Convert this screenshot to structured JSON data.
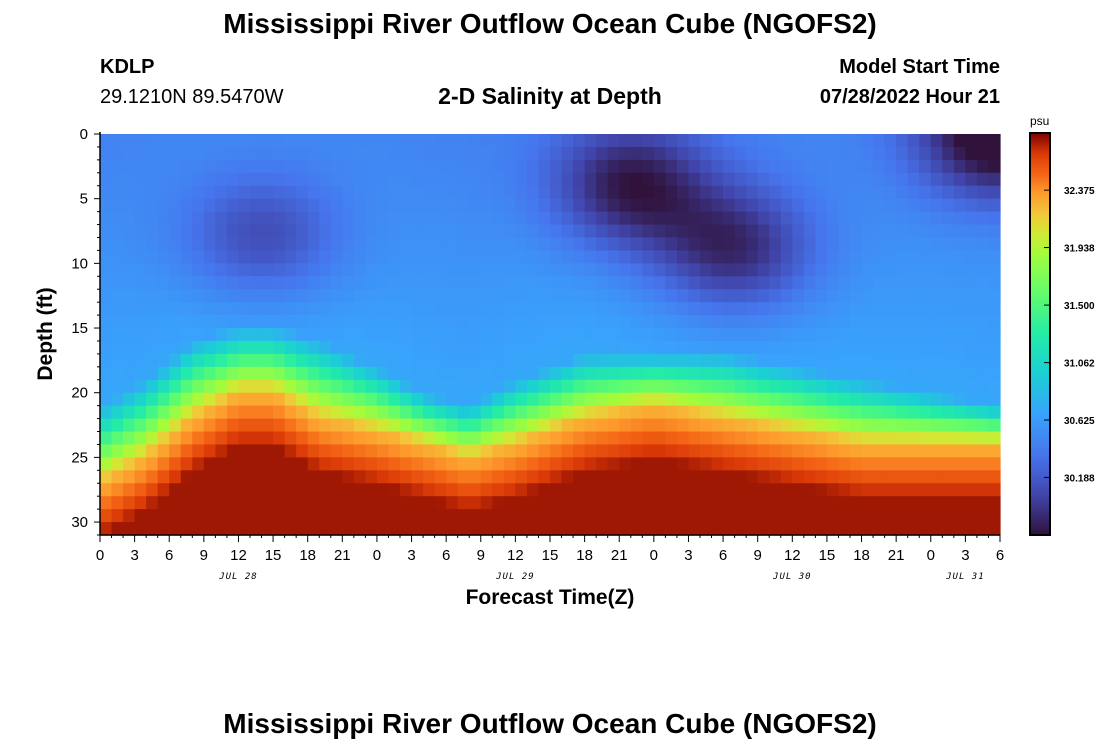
{
  "header": {
    "title": "Mississippi River Outflow Ocean Cube (NGOFS2)",
    "station": "KDLP",
    "coordinates": "29.1210N  89.5470W",
    "plot_title": "2-D Salinity at Depth",
    "model_start_label": "Model Start Time",
    "model_start_value": "07/28/2022 Hour 21"
  },
  "footer": {
    "title": "Mississippi River Outflow Ocean Cube (NGOFS2)"
  },
  "chart_data": {
    "type": "heatmap",
    "title": "2-D Salinity at Depth",
    "xlabel": "Forecast Time(Z)",
    "ylabel": "Depth (ft)",
    "x_ticks": [
      "0",
      "3",
      "6",
      "9",
      "12",
      "15",
      "18",
      "21",
      "0",
      "3",
      "6",
      "9",
      "12",
      "15",
      "18",
      "21",
      "0",
      "3",
      "6",
      "9",
      "12",
      "15",
      "18",
      "21",
      "0",
      "3",
      "6"
    ],
    "date_labels": [
      {
        "label": "JUL 28",
        "hour_index": 12
      },
      {
        "label": "JUL 29",
        "hour_index": 36
      },
      {
        "label": "JUL 30",
        "hour_index": 60
      },
      {
        "label": "JUL 31",
        "hour_index": 75
      }
    ],
    "x_range_hours": [
      0,
      78
    ],
    "y_ticks": [
      0,
      5,
      10,
      15,
      20,
      25,
      30
    ],
    "ylim": [
      0,
      31
    ],
    "y_inverted": true,
    "colorbar": {
      "unit": "psu",
      "ticks": [
        30.188,
        30.625,
        31.062,
        31.5,
        31.938,
        32.375
      ],
      "range": [
        29.75,
        32.81
      ]
    },
    "interface_depth_ft": [
      {
        "hour": 0,
        "top": 21,
        "bottom": 27
      },
      {
        "hour": 4,
        "top": 19,
        "bottom": 25
      },
      {
        "hour": 8,
        "top": 16,
        "bottom": 22
      },
      {
        "hour": 12,
        "top": 15,
        "bottom": 20
      },
      {
        "hour": 15,
        "top": 15,
        "bottom": 20
      },
      {
        "hour": 19,
        "top": 16,
        "bottom": 22
      },
      {
        "hour": 24,
        "top": 18,
        "bottom": 23
      },
      {
        "hour": 28,
        "top": 20,
        "bottom": 24
      },
      {
        "hour": 32,
        "top": 21,
        "bottom": 25
      },
      {
        "hour": 36,
        "top": 19,
        "bottom": 24
      },
      {
        "hour": 42,
        "top": 17,
        "bottom": 22
      },
      {
        "hour": 48,
        "top": 17,
        "bottom": 21
      },
      {
        "hour": 54,
        "top": 17,
        "bottom": 22
      },
      {
        "hour": 60,
        "top": 18,
        "bottom": 23
      },
      {
        "hour": 66,
        "top": 19,
        "bottom": 24
      },
      {
        "hour": 72,
        "top": 20,
        "bottom": 24
      },
      {
        "hour": 78,
        "top": 21,
        "bottom": 24
      }
    ],
    "low_salinity_cores": [
      {
        "hour": 14,
        "depth": 8,
        "value": 30.2
      },
      {
        "hour": 46,
        "depth": 4,
        "value": 29.95
      },
      {
        "hour": 55,
        "depth": 9,
        "value": 30.0
      },
      {
        "hour": 78,
        "depth": 0,
        "value": 29.78
      }
    ]
  }
}
